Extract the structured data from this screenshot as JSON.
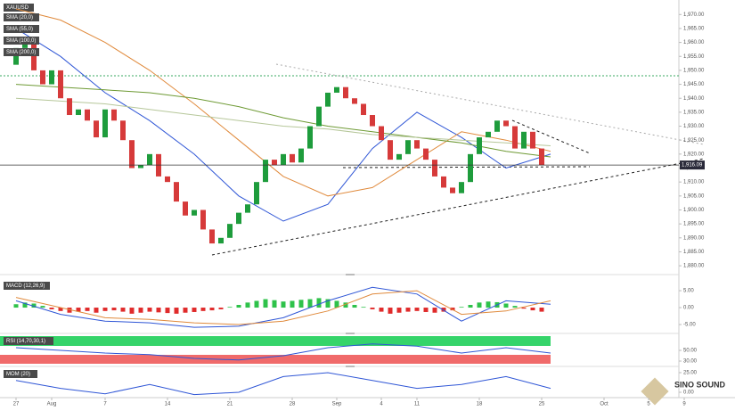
{
  "chart_data": [
    {
      "type": "candlestick",
      "title": "XAUUSD",
      "open": [
        1952,
        1958,
        1962,
        1950,
        1945,
        1950,
        1940,
        1934,
        1936,
        1932,
        1926,
        1936,
        1932,
        1925,
        1915,
        1916,
        1920,
        1912,
        1910,
        1903,
        1898,
        1900,
        1893,
        1888,
        1890,
        1895,
        1899,
        1902,
        1910,
        1918,
        1916,
        1920,
        1917,
        1922,
        1930,
        1937,
        1942,
        1944,
        1940,
        1938,
        1934,
        1930,
        1925,
        1918,
        1920,
        1925,
        1922,
        1918,
        1912,
        1908,
        1906,
        1910,
        1920,
        1926,
        1928,
        1932,
        1930,
        1922,
        1928,
        1922
      ],
      "close": [
        1958,
        1962,
        1950,
        1945,
        1950,
        1940,
        1934,
        1936,
        1932,
        1926,
        1936,
        1932,
        1925,
        1915,
        1916,
        1920,
        1912,
        1910,
        1903,
        1898,
        1900,
        1893,
        1888,
        1890,
        1895,
        1899,
        1902,
        1910,
        1918,
        1916,
        1920,
        1917,
        1922,
        1930,
        1937,
        1942,
        1944,
        1940,
        1938,
        1934,
        1930,
        1925,
        1918,
        1920,
        1925,
        1922,
        1918,
        1912,
        1908,
        1906,
        1910,
        1920,
        1926,
        1928,
        1932,
        1930,
        1922,
        1928,
        1922,
        1916
      ],
      "up_color": "#1e9c3c",
      "down_color": "#d63a3a",
      "series": [
        {
          "name": "SMA (20,0)",
          "color": "#2f56d6",
          "x": [
            0,
            5,
            10,
            15,
            20,
            25,
            30,
            35,
            40,
            45,
            50,
            55,
            60
          ],
          "values": [
            1965,
            1955,
            1942,
            1932,
            1920,
            1905,
            1896,
            1902,
            1922,
            1935,
            1926,
            1915,
            1920
          ]
        },
        {
          "name": "SMA (55,0)",
          "color": "#e08a3c",
          "x": [
            0,
            5,
            10,
            15,
            20,
            25,
            30,
            35,
            40,
            45,
            50,
            55,
            60
          ],
          "values": [
            1972,
            1968,
            1960,
            1950,
            1938,
            1925,
            1912,
            1905,
            1908,
            1918,
            1928,
            1925,
            1921
          ]
        },
        {
          "name": "SMA (100,0)",
          "color": "#6e9a34",
          "x": [
            0,
            5,
            10,
            15,
            20,
            25,
            30,
            35,
            40,
            45,
            50,
            55,
            60
          ],
          "values": [
            1945,
            1944,
            1943,
            1942,
            1940,
            1937,
            1933,
            1930,
            1928,
            1926,
            1924,
            1921,
            1919
          ]
        },
        {
          "name": "SMA (200,0)",
          "color": "#b6c79a",
          "x": [
            0,
            5,
            10,
            15,
            20,
            25,
            30,
            35,
            40,
            45,
            50,
            55,
            60
          ],
          "values": [
            1940,
            1939,
            1938,
            1936,
            1934,
            1932,
            1930,
            1929,
            1927,
            1926,
            1925,
            1924,
            1923
          ]
        }
      ],
      "current_price": {
        "value": 1916.09,
        "label": "1,916.09"
      },
      "xlim": [
        -1.8,
        74.4
      ],
      "xticks": [
        {
          "value": 0,
          "label": "27"
        },
        {
          "value": 4,
          "label": "Aug"
        },
        {
          "value": 10,
          "label": "7"
        },
        {
          "value": 17,
          "label": "14"
        },
        {
          "value": 24,
          "label": "21"
        },
        {
          "value": 31,
          "label": "28"
        },
        {
          "value": 36,
          "label": "Sep"
        },
        {
          "value": 41,
          "label": "4"
        },
        {
          "value": 45,
          "label": "11"
        },
        {
          "value": 52,
          "label": "18"
        },
        {
          "value": 59,
          "label": "25"
        },
        {
          "value": 66,
          "label": "Oct"
        },
        {
          "value": 71,
          "label": "5"
        },
        {
          "value": 75,
          "label": "9"
        }
      ],
      "ylim": [
        1877.8,
        1975.2
      ],
      "yticks": [
        {
          "value": 1880,
          "label": "1,880.00"
        },
        {
          "value": 1885,
          "label": "1,885.00"
        },
        {
          "value": 1890,
          "label": "1,890.00"
        },
        {
          "value": 1895,
          "label": "1,895.00"
        },
        {
          "value": 1900,
          "label": "1,900.00"
        },
        {
          "value": 1905,
          "label": "1,905.00"
        },
        {
          "value": 1910,
          "label": "1,910.00"
        },
        {
          "value": 1915,
          "label": "1,915.00"
        },
        {
          "value": 1920,
          "label": "1,920.00"
        },
        {
          "value": 1925,
          "label": "1,925.00"
        },
        {
          "value": 1930,
          "label": "1,930.00"
        },
        {
          "value": 1935,
          "label": "1,935.00"
        },
        {
          "value": 1940,
          "label": "1,940.00"
        },
        {
          "value": 1945,
          "label": "1,945.00"
        },
        {
          "value": 1950,
          "label": "1,950.00"
        },
        {
          "value": 1955,
          "label": "1,955.00"
        },
        {
          "value": 1960,
          "label": "1,960.00"
        },
        {
          "value": 1965,
          "label": "1,965.00"
        },
        {
          "value": 1970,
          "label": "1,970.00"
        }
      ],
      "watermark": "SINO SOUND"
    },
    {
      "type": "macd",
      "title": "MACD (12,26,9)",
      "histogram": [
        1,
        1.5,
        1.2,
        0.5,
        -0.5,
        -1,
        -1.5,
        -1.2,
        -1,
        -1.5,
        -1,
        -0.8,
        -1.2,
        -1.8,
        -1.5,
        -1.2,
        -1.4,
        -1.6,
        -1.8,
        -1.5,
        -1.3,
        -1.0,
        -0.8,
        -0.5,
        0.2,
        0.8,
        1.5,
        2,
        2.5,
        2.2,
        1.8,
        2,
        2.3,
        2.5,
        2.8,
        2.5,
        2,
        1.5,
        0.8,
        0.2,
        -0.5,
        -1.2,
        -1.8,
        -1.5,
        -1.2,
        -1,
        -1.3,
        -1.5,
        -1.2,
        -0.8,
        0.2,
        0.8,
        1.5,
        1.8,
        1.6,
        1.2,
        0.5,
        -0.3,
        -0.8,
        -1.2
      ],
      "up_color": "#2ec24a",
      "down_color": "#e02b2b",
      "series": [
        {
          "color": "#2f56d6",
          "x": [
            0,
            5,
            10,
            15,
            20,
            25,
            30,
            35,
            40,
            45,
            50,
            55,
            60
          ],
          "values": [
            2,
            -2,
            -4,
            -4.5,
            -5.8,
            -5.5,
            -3,
            2,
            6,
            4,
            -4,
            2,
            1
          ]
        },
        {
          "color": "#e08a3c",
          "x": [
            0,
            5,
            10,
            15,
            20,
            25,
            30,
            35,
            40,
            45,
            50,
            55,
            60
          ],
          "values": [
            3,
            0,
            -3,
            -3.5,
            -4.5,
            -5,
            -4,
            -1,
            4,
            5,
            -2,
            -1,
            2
          ]
        }
      ],
      "ylim": [
        -7.1,
        8.7
      ],
      "yticks": [
        {
          "value": 5,
          "label": "5.00"
        },
        {
          "value": 0,
          "label": "0.00"
        },
        {
          "value": -5,
          "label": "-5.00"
        }
      ]
    },
    {
      "type": "line",
      "title": "RSI (14,70,30,1)",
      "series": [
        {
          "color": "#2f56d6",
          "x": [
            0,
            5,
            10,
            15,
            20,
            25,
            30,
            35,
            40,
            45,
            50,
            55,
            60
          ],
          "values": [
            55,
            50,
            45,
            42,
            35,
            32,
            40,
            55,
            62,
            58,
            45,
            55,
            45
          ]
        }
      ],
      "ylim": [
        21.7,
        78.3
      ],
      "yticks": [
        {
          "value": 50,
          "label": "50.00"
        },
        {
          "value": 30,
          "label": "30.00"
        }
      ]
    },
    {
      "type": "line",
      "title": "MOM (20)",
      "series": [
        {
          "color": "#2f56d6",
          "x": [
            0,
            5,
            10,
            15,
            20,
            25,
            30,
            35,
            40,
            45,
            50,
            55,
            60
          ],
          "values": [
            15,
            5,
            -2,
            10,
            -3,
            0,
            20,
            25,
            15,
            5,
            10,
            20,
            5
          ]
        }
      ],
      "ylim": [
        -5.7,
        30.7
      ],
      "yticks": [
        {
          "value": 25,
          "label": "25.00"
        },
        {
          "value": 0,
          "label": "0.00"
        }
      ]
    }
  ]
}
